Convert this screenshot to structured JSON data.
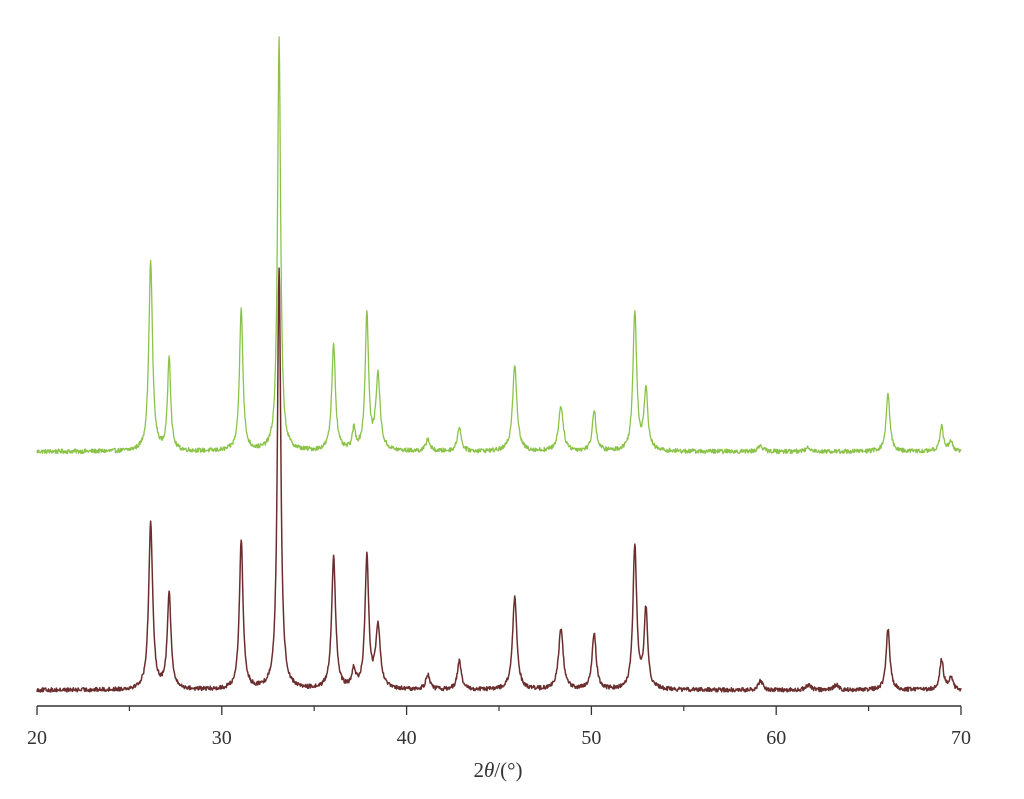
{
  "chart_data": {
    "type": "line",
    "title": "",
    "xlabel_prefix": "2",
    "xlabel_symbol": "θ",
    "xlabel_suffix": "/(°)",
    "ylabel": "",
    "xlim": [
      20,
      70
    ],
    "xticks": [
      20,
      30,
      40,
      50,
      60,
      70
    ],
    "x_minor_ticks": [
      25,
      35,
      45,
      55,
      65
    ],
    "y_axis_shown": false,
    "grid": false,
    "legend": "none",
    "series": [
      {
        "color": "#8bc34a",
        "baseline": 0.1,
        "noise": 0.9,
        "peaks": [
          {
            "x": 26.15,
            "y": 46,
            "w": 0.12
          },
          {
            "x": 27.15,
            "y": 23,
            "w": 0.1
          },
          {
            "x": 31.05,
            "y": 35,
            "w": 0.11
          },
          {
            "x": 33.1,
            "y": 100,
            "w": 0.1
          },
          {
            "x": 36.05,
            "y": 26,
            "w": 0.12
          },
          {
            "x": 37.15,
            "y": 5,
            "w": 0.1
          },
          {
            "x": 37.85,
            "y": 33,
            "w": 0.11
          },
          {
            "x": 38.45,
            "y": 18,
            "w": 0.14
          },
          {
            "x": 41.15,
            "y": 3,
            "w": 0.12
          },
          {
            "x": 42.85,
            "y": 6,
            "w": 0.12
          },
          {
            "x": 45.85,
            "y": 21,
            "w": 0.14
          },
          {
            "x": 48.35,
            "y": 11,
            "w": 0.15
          },
          {
            "x": 50.15,
            "y": 10,
            "w": 0.12
          },
          {
            "x": 52.35,
            "y": 34,
            "w": 0.12
          },
          {
            "x": 52.95,
            "y": 15,
            "w": 0.12
          },
          {
            "x": 59.15,
            "y": 1.5,
            "w": 0.15
          },
          {
            "x": 61.75,
            "y": 1,
            "w": 0.15
          },
          {
            "x": 66.05,
            "y": 14,
            "w": 0.12
          },
          {
            "x": 68.95,
            "y": 6,
            "w": 0.12
          },
          {
            "x": 69.45,
            "y": 2.5,
            "w": 0.12
          }
        ]
      },
      {
        "color": "#6b2e2e",
        "baseline": 0.2,
        "noise": 0.8,
        "peaks": [
          {
            "x": 26.15,
            "y": 38,
            "w": 0.13
          },
          {
            "x": 27.15,
            "y": 22,
            "w": 0.12
          },
          {
            "x": 31.05,
            "y": 34,
            "w": 0.12
          },
          {
            "x": 33.1,
            "y": 96,
            "w": 0.11
          },
          {
            "x": 36.05,
            "y": 30,
            "w": 0.13
          },
          {
            "x": 37.15,
            "y": 4,
            "w": 0.12
          },
          {
            "x": 37.85,
            "y": 30,
            "w": 0.12
          },
          {
            "x": 38.45,
            "y": 14,
            "w": 0.15
          },
          {
            "x": 41.15,
            "y": 3.5,
            "w": 0.13
          },
          {
            "x": 42.85,
            "y": 6.5,
            "w": 0.13
          },
          {
            "x": 45.85,
            "y": 21,
            "w": 0.14
          },
          {
            "x": 48.35,
            "y": 14,
            "w": 0.15
          },
          {
            "x": 50.15,
            "y": 13,
            "w": 0.13
          },
          {
            "x": 52.35,
            "y": 33,
            "w": 0.12
          },
          {
            "x": 52.95,
            "y": 18,
            "w": 0.12
          },
          {
            "x": 59.15,
            "y": 2,
            "w": 0.15
          },
          {
            "x": 61.75,
            "y": 1.2,
            "w": 0.15
          },
          {
            "x": 63.25,
            "y": 1.2,
            "w": 0.15
          },
          {
            "x": 66.05,
            "y": 14,
            "w": 0.12
          },
          {
            "x": 68.95,
            "y": 7,
            "w": 0.12
          },
          {
            "x": 69.45,
            "y": 3,
            "w": 0.12
          }
        ]
      }
    ]
  }
}
